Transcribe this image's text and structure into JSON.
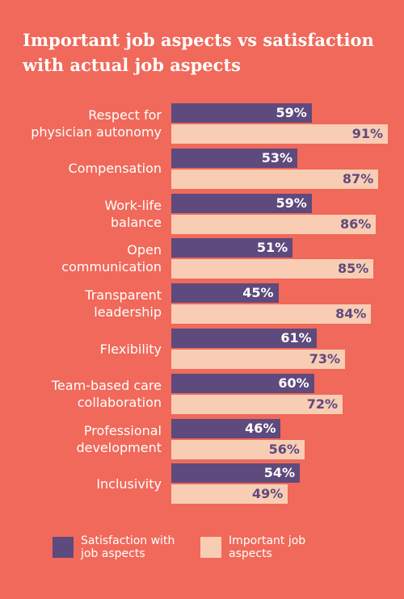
{
  "chart_data": {
    "type": "bar",
    "orientation": "horizontal",
    "title": "Important job aspects vs satisfaction\nwith actual job aspects",
    "categories": [
      "Respect for\nphysician autonomy",
      "Compensation",
      "Work-life\nbalance",
      "Open\ncommunication",
      "Transparent\nleadership",
      "Flexibility",
      "Team-based care\ncollaboration",
      "Professional\ndevelopment",
      "Inclusivity"
    ],
    "series": [
      {
        "name": "Satisfaction with\njob aspects",
        "color": "#5e4a7d",
        "label_color": "#ffffff",
        "values": [
          59,
          53,
          59,
          51,
          45,
          61,
          60,
          46,
          54
        ],
        "value_labels": [
          "59%",
          "53%",
          "59%",
          "51%",
          "45%",
          "61%",
          "60%",
          "46%",
          "54%"
        ]
      },
      {
        "name": "Important job\naspects",
        "color": "#f9cdb4",
        "label_color": "#5e4a7d",
        "values": [
          91,
          87,
          86,
          85,
          84,
          73,
          72,
          56,
          49
        ],
        "value_labels": [
          "91%",
          "87%",
          "86%",
          "85%",
          "84%",
          "73%",
          "72%",
          "56%",
          "49%"
        ]
      }
    ],
    "background": "#f0695a"
  }
}
